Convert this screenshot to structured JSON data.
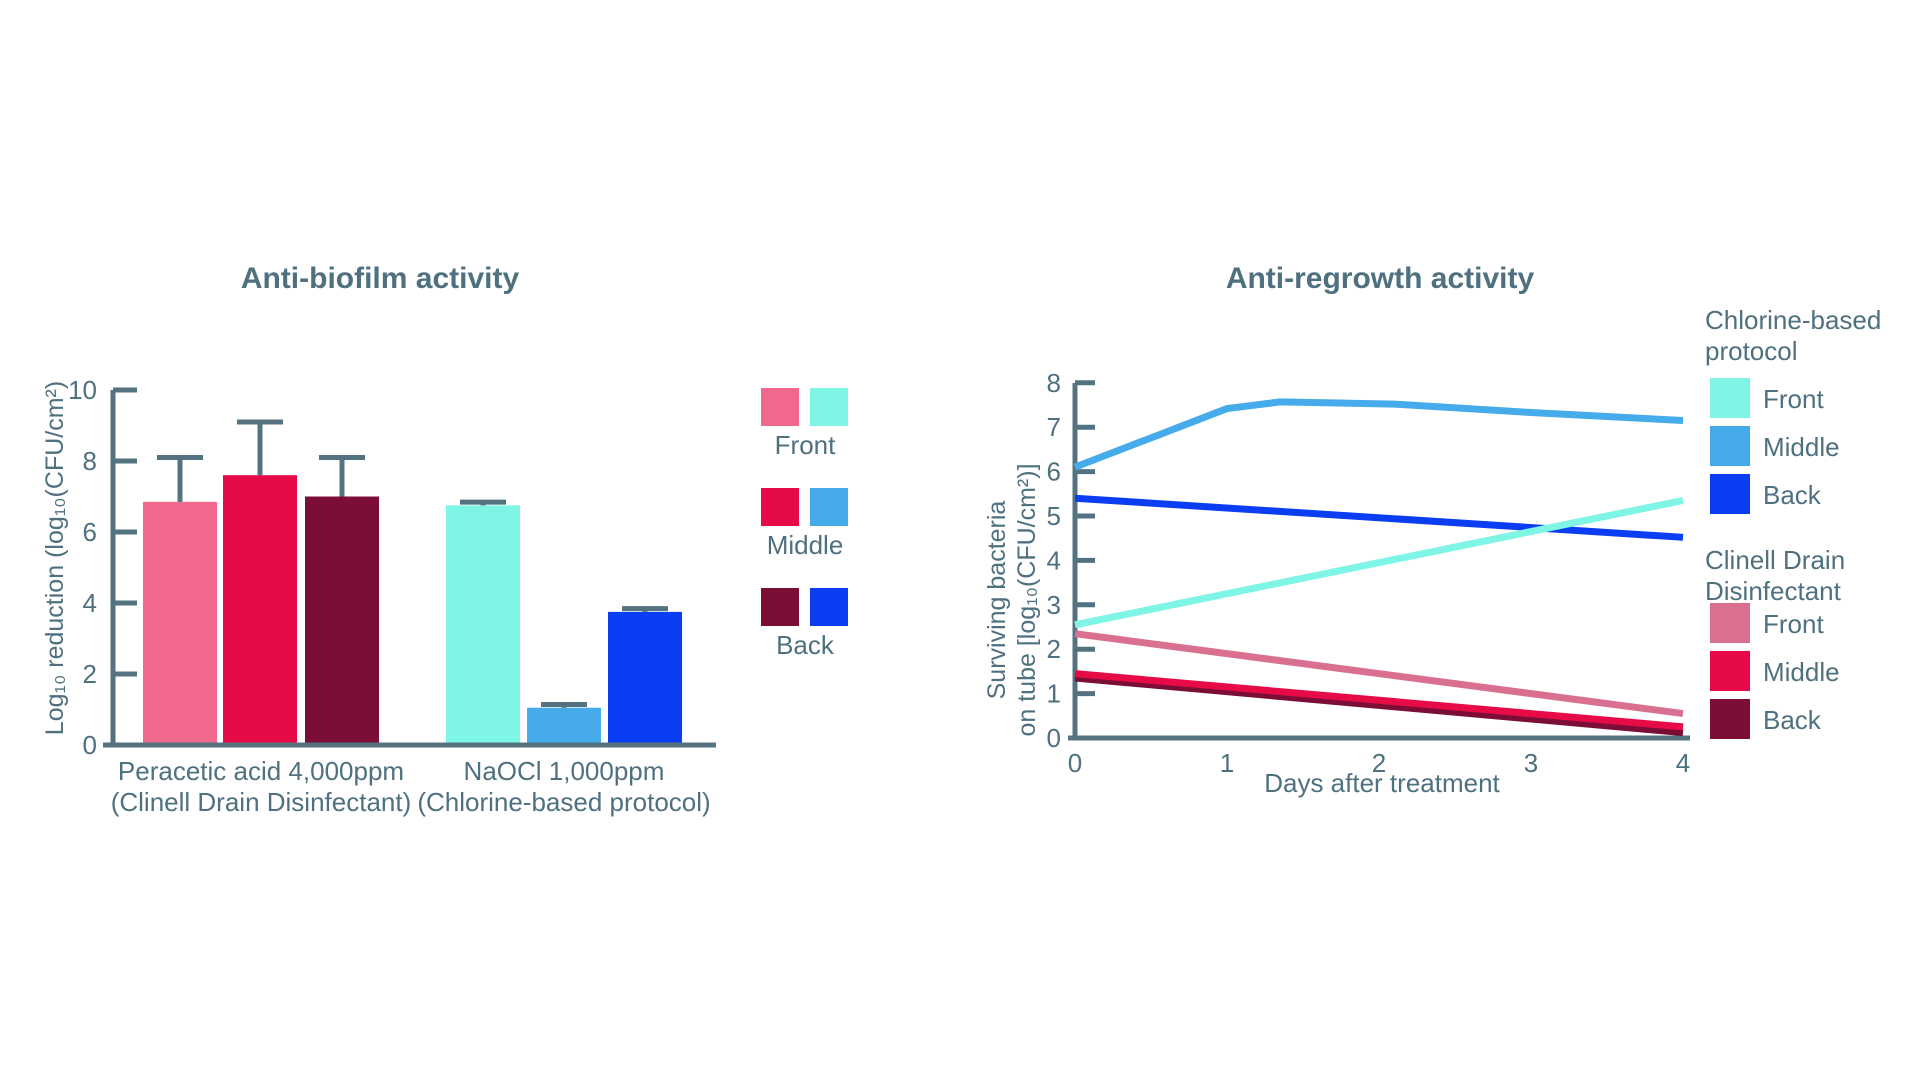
{
  "colors": {
    "axis": "#547380",
    "text": "#4E707F",
    "background": "#FFFFFF"
  },
  "chart_data": [
    {
      "type": "bar",
      "title": "Anti-biofilm activity",
      "ylabel": "Log₁₀ reduction (log₁₀(CFU/cm²)",
      "ylim": [
        0,
        10
      ],
      "yticks": [
        0,
        2,
        4,
        6,
        8,
        10
      ],
      "groups": [
        {
          "label_line1": "Peracetic acid 4,000ppm",
          "label_line2": "(Clinell Drain Disinfectant)",
          "bars": [
            {
              "position": "Front",
              "value": 6.85,
              "error_top": 8.1,
              "color": "#F0698C"
            },
            {
              "position": "Middle",
              "value": 7.6,
              "error_top": 9.1,
              "color": "#E60A46"
            },
            {
              "position": "Back",
              "value": 7.0,
              "error_top": 8.1,
              "color": "#7C0D37"
            }
          ]
        },
        {
          "label_line1": "NaOCl 1,000ppm",
          "label_line2": "(Chlorine-based protocol)",
          "bars": [
            {
              "position": "Front",
              "value": 6.75,
              "error_top": 6.84,
              "color": "#7FF5E6"
            },
            {
              "position": "Middle",
              "value": 1.05,
              "error_top": 1.14,
              "color": "#45ABEA"
            },
            {
              "position": "Back",
              "value": 3.75,
              "error_top": 3.84,
              "color": "#0B3DF2"
            }
          ]
        }
      ]
    },
    {
      "type": "line",
      "title": "Anti-regrowth activity",
      "ylabel_line1": "Surviving bacteria",
      "ylabel_line2": "on tube [log₁₀(CFU/cm²)]",
      "xlabel": "Days after treatment",
      "xlim": [
        0,
        4
      ],
      "ylim": [
        0,
        8
      ],
      "xticks": [
        0,
        1,
        2,
        3,
        4
      ],
      "yticks": [
        0,
        1,
        2,
        3,
        4,
        5,
        6,
        7,
        8
      ],
      "series": [
        {
          "name": "Chlorine-based protocol Front",
          "color": "#7FF5E6",
          "points": [
            [
              0,
              2.55
            ],
            [
              4,
              5.35
            ]
          ]
        },
        {
          "name": "Chlorine-based protocol Middle",
          "color": "#45ABEA",
          "points": [
            [
              0,
              6.1
            ],
            [
              1.0,
              7.42
            ],
            [
              1.35,
              7.57
            ],
            [
              2.1,
              7.52
            ],
            [
              3.0,
              7.33
            ],
            [
              4,
              7.15
            ]
          ]
        },
        {
          "name": "Chlorine-based protocol Back",
          "color": "#0B3DF2",
          "points": [
            [
              0,
              5.4
            ],
            [
              4,
              4.52
            ]
          ]
        },
        {
          "name": "Clinell Drain Disinfectant Front",
          "color": "#D9708F",
          "points": [
            [
              0,
              2.35
            ],
            [
              4,
              0.55
            ]
          ]
        },
        {
          "name": "Clinell Drain Disinfectant Middle",
          "color": "#E60A46",
          "points": [
            [
              0,
              1.45
            ],
            [
              4,
              0.25
            ]
          ]
        },
        {
          "name": "Clinell Drain Disinfectant Back",
          "color": "#7C0D37",
          "points": [
            [
              0,
              1.35
            ],
            [
              4,
              0.12
            ]
          ]
        }
      ]
    }
  ],
  "middle_legend": {
    "rows": [
      {
        "label": "Front",
        "left_color": "#F0698C",
        "right_color": "#7FF5E6"
      },
      {
        "label": "Middle",
        "left_color": "#E60A46",
        "right_color": "#45ABEA"
      },
      {
        "label": "Back",
        "left_color": "#7C0D37",
        "right_color": "#0B3DF2"
      }
    ]
  },
  "right_legend": {
    "sections": [
      {
        "title_line1": "Chlorine-based",
        "title_line2": "protocol",
        "items": [
          {
            "label": "Front",
            "color": "#7FF5E6"
          },
          {
            "label": "Middle",
            "color": "#45ABEA"
          },
          {
            "label": "Back",
            "color": "#0B3DF2"
          }
        ]
      },
      {
        "title_line1": "Clinell Drain",
        "title_line2": "Disinfectant",
        "items": [
          {
            "label": "Front",
            "color": "#D9708F"
          },
          {
            "label": "Middle",
            "color": "#E60A46"
          },
          {
            "label": "Back",
            "color": "#7C0D37"
          }
        ]
      }
    ]
  }
}
